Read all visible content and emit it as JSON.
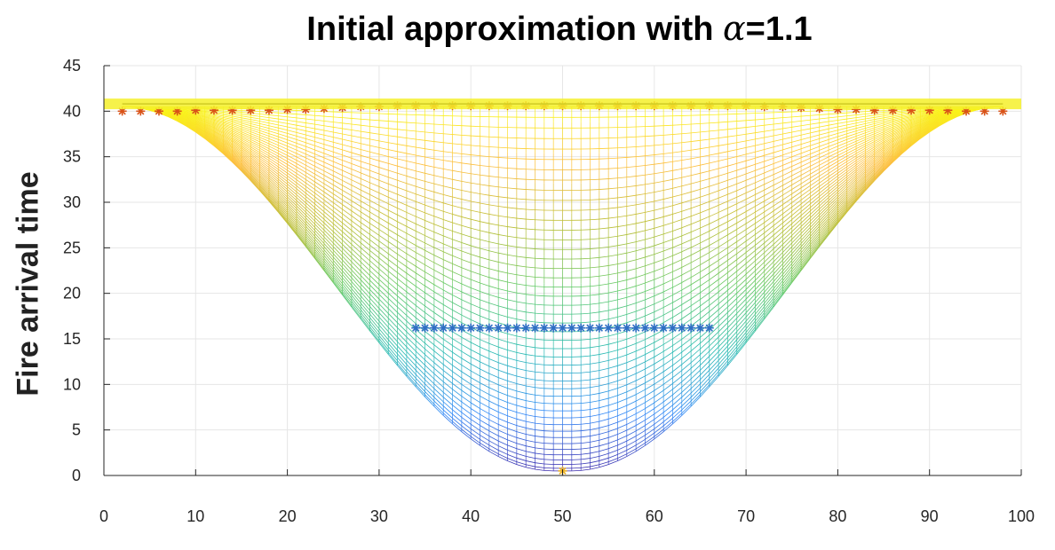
{
  "chart_data": {
    "type": "line",
    "title": "Initial approximation with",
    "title_symbol": "α",
    "title_suffix": "=1.1",
    "xlabel": "",
    "ylabel": "Fire arrival time",
    "xlim": [
      0,
      100
    ],
    "ylim": [
      0,
      45
    ],
    "xticks": [
      "0",
      "10",
      "20",
      "30",
      "40",
      "50",
      "60",
      "70",
      "80",
      "90",
      "100"
    ],
    "yticks": [
      "0",
      "5",
      "10",
      "15",
      "20",
      "25",
      "30",
      "35",
      "40",
      "45"
    ],
    "grid": true,
    "colormap": [
      "#3e26a8",
      "#2e87f7",
      "#29bbb1",
      "#5fc965",
      "#b9be33",
      "#fdbe3d",
      "#f9fb15"
    ],
    "surface": {
      "x_range": [
        2,
        98
      ],
      "x_count": 97,
      "contour_levels": 44,
      "ignition_point": {
        "x": 50,
        "y": 0.5
      },
      "outer_boundary_y": 40.5,
      "inner_boundary": {
        "x_range": [
          34,
          66
        ],
        "y": 16.2
      }
    },
    "series": [
      {
        "color": "#2f6fc4",
        "marker": "*",
        "x": [
          34,
          35,
          36,
          37,
          38,
          39,
          40,
          41,
          42,
          43,
          44,
          45,
          46,
          47,
          48,
          49,
          50,
          51,
          52,
          53,
          54,
          55,
          56,
          57,
          58,
          59,
          60,
          61,
          62,
          63,
          64,
          65,
          66
        ],
        "y": [
          16.2,
          16.2,
          16.2,
          16.2,
          16.2,
          16.2,
          16.2,
          16.2,
          16.2,
          16.2,
          16.2,
          16.2,
          16.2,
          16.2,
          16.2,
          16.2,
          16.2,
          16.2,
          16.2,
          16.2,
          16.2,
          16.2,
          16.2,
          16.2,
          16.2,
          16.2,
          16.2,
          16.2,
          16.2,
          16.2,
          16.2,
          16.2,
          16.2
        ]
      },
      {
        "color": "#d95319",
        "marker": "*",
        "x": [
          2,
          4,
          6,
          8,
          10,
          12,
          14,
          16,
          18,
          20,
          22,
          24,
          26,
          28,
          30,
          32,
          34,
          36,
          38,
          40,
          42,
          44,
          46,
          48,
          50,
          52,
          54,
          56,
          58,
          60,
          62,
          64,
          66,
          68,
          70,
          72,
          74,
          76,
          78,
          80,
          82,
          84,
          86,
          88,
          90,
          92,
          94,
          96,
          98
        ],
        "y": [
          40.0,
          40.0,
          40.0,
          40.0,
          40.1,
          40.1,
          40.1,
          40.1,
          40.1,
          40.2,
          40.2,
          40.3,
          40.4,
          40.5,
          40.5,
          40.6,
          40.6,
          40.6,
          40.6,
          40.6,
          40.6,
          40.6,
          40.6,
          40.6,
          40.6,
          40.6,
          40.6,
          40.6,
          40.6,
          40.6,
          40.6,
          40.6,
          40.6,
          40.6,
          40.6,
          40.5,
          40.5,
          40.4,
          40.3,
          40.2,
          40.2,
          40.1,
          40.1,
          40.1,
          40.1,
          40.1,
          40.0,
          40.0,
          40.0
        ]
      },
      {
        "color": "#edb120",
        "marker": "*",
        "x": [
          50
        ],
        "y": [
          0.5
        ]
      },
      {
        "color": "#000000",
        "marker": "none",
        "x": [
          2,
          98
        ],
        "y": [
          40.8,
          40.8
        ]
      },
      {
        "color": "#f5f02a",
        "marker": "none",
        "x": [
          0,
          2,
          98,
          100
        ],
        "y": [
          40.8,
          40.8,
          40.8,
          40.8
        ]
      }
    ]
  }
}
